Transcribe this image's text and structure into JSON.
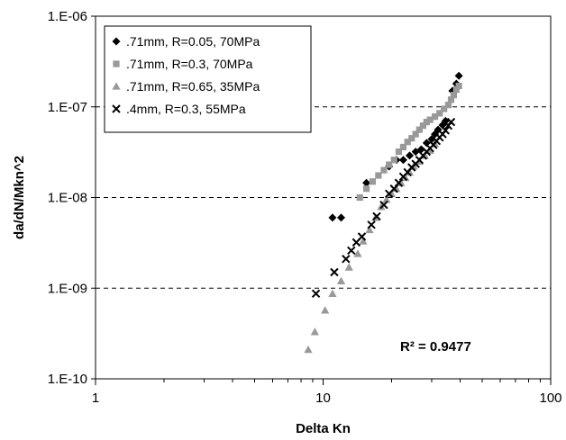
{
  "chart_data": {
    "type": "scatter",
    "title": "",
    "xlabel": "Delta Kn",
    "ylabel": "da/dN/Mkn^2",
    "xscale": "log",
    "yscale": "log",
    "xlim": [
      1,
      100
    ],
    "ylim": [
      1e-10,
      1e-06
    ],
    "x_tick_values": [
      1,
      10,
      100
    ],
    "x_tick_labels": [
      "1",
      "10",
      "100"
    ],
    "y_tick_values": [
      1e-10,
      1e-09,
      1e-08,
      1e-07,
      1e-06
    ],
    "y_tick_labels": [
      "1.E-10",
      "1.E-09",
      "1.E-08",
      "1.E-07",
      "1.E-06"
    ],
    "grid": "horizontal dashed at major y ticks",
    "legend_position": "top-left",
    "annotation": "R² = 0.9477",
    "series": [
      {
        "name": ".71mm, R=0.05, 70MPa",
        "marker": "diamond",
        "color": "#000000",
        "points": [
          [
            11.0,
            6e-09
          ],
          [
            12.0,
            6e-09
          ],
          [
            15.5,
            1.45e-08
          ],
          [
            19.5,
            2.2e-08
          ],
          [
            21.0,
            2.6e-08
          ],
          [
            22.5,
            2.6e-08
          ],
          [
            24.0,
            2.9e-08
          ],
          [
            25.5,
            3.2e-08
          ],
          [
            27.0,
            3.4e-08
          ],
          [
            28.5,
            4e-08
          ],
          [
            30.0,
            4.4e-08
          ],
          [
            31.0,
            5e-08
          ],
          [
            32.0,
            5.6e-08
          ],
          [
            33.5,
            6.3e-08
          ],
          [
            34.5,
            7e-08
          ],
          [
            37.0,
            1.5e-07
          ],
          [
            38.5,
            1.8e-07
          ],
          [
            39.5,
            2.2e-07
          ]
        ]
      },
      {
        "name": ".71mm, R=0.3, 70MPa",
        "marker": "square",
        "color": "#999999",
        "points": [
          [
            14.5,
            1e-08
          ],
          [
            15.5,
            1.25e-08
          ],
          [
            16.5,
            1.5e-08
          ],
          [
            17.5,
            1.75e-08
          ],
          [
            18.5,
            2e-08
          ],
          [
            19.5,
            2.3e-08
          ],
          [
            20.5,
            2.6e-08
          ],
          [
            21.5,
            3.2e-08
          ],
          [
            22.5,
            3.6e-08
          ],
          [
            23.5,
            4.1e-08
          ],
          [
            24.5,
            4.5e-08
          ],
          [
            25.5,
            5e-08
          ],
          [
            26.5,
            5.6e-08
          ],
          [
            27.5,
            6.2e-08
          ],
          [
            28.5,
            6.8e-08
          ],
          [
            29.5,
            7.2e-08
          ],
          [
            31.0,
            7.8e-08
          ],
          [
            32.5,
            8.5e-08
          ],
          [
            34.0,
            9.5e-08
          ],
          [
            35.5,
            1.05e-07
          ],
          [
            36.5,
            1.2e-07
          ],
          [
            37.5,
            1.35e-07
          ],
          [
            38.5,
            1.55e-07
          ],
          [
            39.5,
            1.7e-07
          ]
        ]
      },
      {
        "name": ".71mm, R=0.65, 35MPa",
        "marker": "triangle",
        "color": "#999999",
        "points": [
          [
            8.6,
            2.1e-10
          ],
          [
            9.2,
            3.3e-10
          ],
          [
            10.2,
            5.7e-10
          ],
          [
            11.0,
            8.7e-10
          ],
          [
            12.0,
            1.2e-09
          ],
          [
            13.0,
            1.7e-09
          ],
          [
            14.2,
            2.4e-09
          ],
          [
            15.0,
            3.3e-09
          ],
          [
            16.0,
            4.4e-09
          ],
          [
            17.0,
            6e-09
          ],
          [
            18.0,
            7.9e-09
          ],
          [
            19.0,
            9.5e-09
          ],
          [
            20.0,
            1.1e-08
          ],
          [
            21.0,
            1.25e-08
          ],
          [
            22.0,
            1.45e-08
          ],
          [
            23.0,
            1.65e-08
          ],
          [
            24.0,
            1.9e-08
          ],
          [
            25.0,
            2.2e-08
          ],
          [
            26.5,
            2.5e-08
          ],
          [
            28.0,
            2.9e-08
          ],
          [
            29.5,
            3.3e-08
          ],
          [
            31.0,
            3.9e-08
          ]
        ]
      },
      {
        "name": ".4mm, R=0.3, 55MPa",
        "marker": "x",
        "color": "#000000",
        "points": [
          [
            9.3,
            8.7e-10
          ],
          [
            11.2,
            1.5e-09
          ],
          [
            12.6,
            2.1e-09
          ],
          [
            13.3,
            2.6e-09
          ],
          [
            14.0,
            3.2e-09
          ],
          [
            14.8,
            3.7e-09
          ],
          [
            16.3,
            5e-09
          ],
          [
            17.2,
            6.2e-09
          ],
          [
            18.5,
            8.3e-09
          ],
          [
            19.5,
            1.1e-08
          ],
          [
            20.5,
            1.25e-08
          ],
          [
            21.5,
            1.45e-08
          ],
          [
            22.5,
            1.7e-08
          ],
          [
            23.5,
            1.9e-08
          ],
          [
            24.5,
            2.15e-08
          ],
          [
            25.5,
            2.35e-08
          ],
          [
            26.5,
            2.6e-08
          ],
          [
            27.5,
            2.9e-08
          ],
          [
            28.5,
            3.2e-08
          ],
          [
            29.5,
            3.5e-08
          ],
          [
            30.5,
            3.8e-08
          ],
          [
            31.5,
            4.2e-08
          ],
          [
            32.5,
            4.6e-08
          ],
          [
            33.5,
            5e-08
          ],
          [
            34.5,
            5.5e-08
          ],
          [
            35.5,
            6.2e-08
          ],
          [
            36.5,
            6.8e-08
          ]
        ]
      }
    ]
  }
}
